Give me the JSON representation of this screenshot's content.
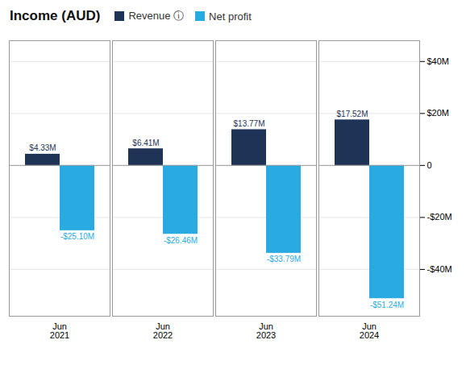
{
  "chart_data": {
    "type": "bar",
    "title": "Income (AUD)",
    "categories": [
      "Jun\n2021",
      "Jun\n2022",
      "Jun\n2023",
      "Jun\n2024"
    ],
    "series": [
      {
        "name": "Revenue ⓘ",
        "color": "#1e3356",
        "values": [
          4.33,
          6.41,
          13.77,
          17.52
        ],
        "value_labels": [
          "$4.33M",
          "$6.41M",
          "$13.77M",
          "$17.52M"
        ]
      },
      {
        "name": "Net profit",
        "color": "#29aae1",
        "values": [
          -25.1,
          -26.46,
          -33.79,
          -51.24
        ],
        "value_labels": [
          "-$25.10M",
          "-$26.46M",
          "-$33.79M",
          "-$51.24M"
        ]
      }
    ],
    "ylim": [
      -58,
      48
    ],
    "yticks": [
      {
        "value": -40,
        "label": "-$40M"
      },
      {
        "value": -20,
        "label": "-$20M"
      },
      0,
      {
        "value": 20,
        "label": "$20M"
      },
      {
        "value": 40,
        "label": "$40M"
      }
    ],
    "grid": true,
    "legend": "top",
    "data_labels": true
  }
}
